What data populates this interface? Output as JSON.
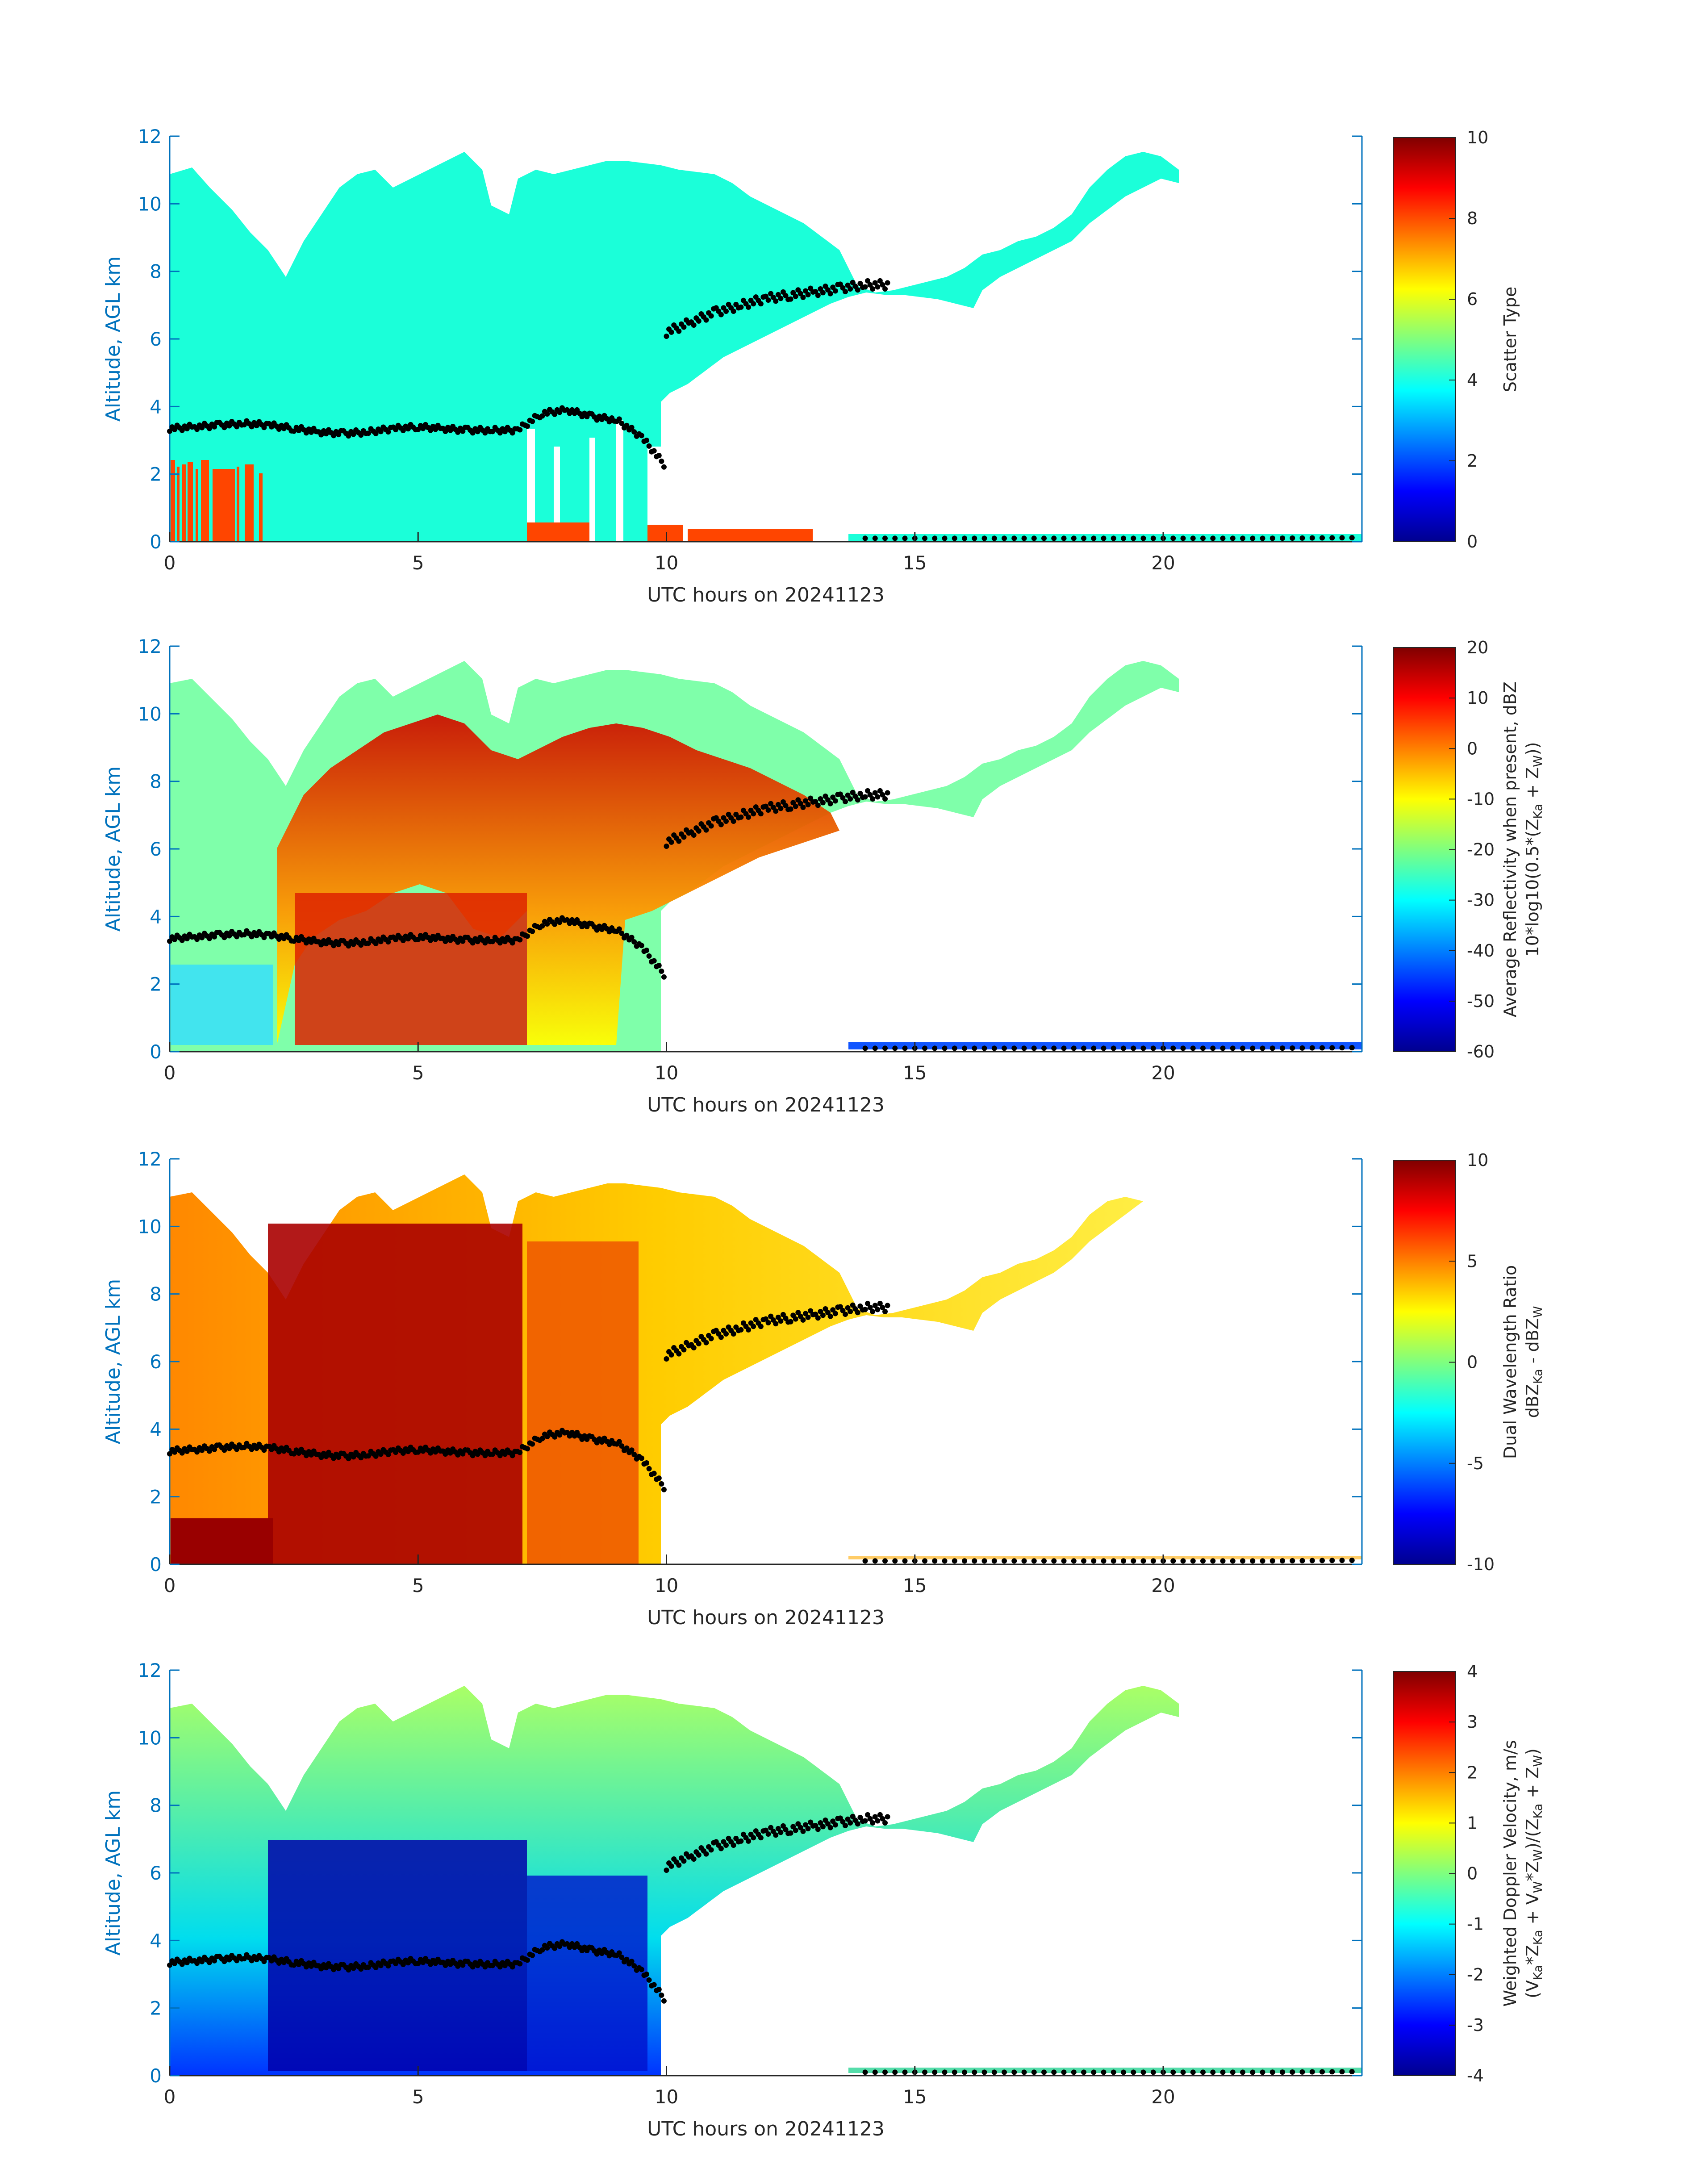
{
  "figure_note_date": "20241123",
  "chart_data": [
    {
      "type": "heatmap",
      "id": "scatter_type",
      "xlabel": "UTC hours on 20241123",
      "ylabel": "Altitude, AGL km",
      "xlim": [
        0,
        24
      ],
      "ylim": [
        0,
        12
      ],
      "xticks": [
        "0",
        "5",
        "10",
        "15",
        "20"
      ],
      "yticks": [
        "0",
        "2",
        "4",
        "6",
        "8",
        "10",
        "12"
      ],
      "colorbar": {
        "label": "Scatter Type",
        "label2": "",
        "clim": [
          0,
          10
        ],
        "ticks": [
          "0",
          "2",
          "4",
          "6",
          "8",
          "10"
        ]
      },
      "colormap": "jet"
    },
    {
      "type": "heatmap",
      "id": "avg_reflectivity",
      "xlabel": "UTC hours on 20241123",
      "ylabel": "Altitude, AGL km",
      "xlim": [
        0,
        24
      ],
      "ylim": [
        0,
        12
      ],
      "xticks": [
        "0",
        "5",
        "10",
        "15",
        "20"
      ],
      "yticks": [
        "0",
        "2",
        "4",
        "6",
        "8",
        "10",
        "12"
      ],
      "colorbar": {
        "label": "Average Reflectivity when present, dBZ",
        "label2": "10*log10(0.5*(Z_Ka + Z_W))",
        "clim": [
          -60,
          20
        ],
        "ticks": [
          "-60",
          "-50",
          "-40",
          "-30",
          "-20",
          "-10",
          "0",
          "10",
          "20"
        ]
      },
      "colormap": "jet"
    },
    {
      "type": "heatmap",
      "id": "dual_wavelength_ratio",
      "xlabel": "UTC hours on 20241123",
      "ylabel": "Altitude, AGL km",
      "xlim": [
        0,
        24
      ],
      "ylim": [
        0,
        12
      ],
      "xticks": [
        "0",
        "5",
        "10",
        "15",
        "20"
      ],
      "yticks": [
        "0",
        "2",
        "4",
        "6",
        "8",
        "10",
        "12"
      ],
      "colorbar": {
        "label": "Dual Wavelength Ratio",
        "label2": "dBZ_Ka - dBZ_W",
        "clim": [
          -10,
          10
        ],
        "ticks": [
          "-10",
          "-5",
          "0",
          "5",
          "10"
        ]
      },
      "colormap": "jet"
    },
    {
      "type": "heatmap",
      "id": "weighted_doppler_velocity",
      "xlabel": "UTC hours on 20241123",
      "ylabel": "Altitude, AGL km",
      "xlim": [
        0,
        24
      ],
      "ylim": [
        0,
        12
      ],
      "xticks": [
        "0",
        "5",
        "10",
        "15",
        "20"
      ],
      "yticks": [
        "0",
        "2",
        "4",
        "6",
        "8",
        "10",
        "12"
      ],
      "colorbar": {
        "label": "Weighted Doppler Velocity, m/s",
        "label2": "(V_Ka*Z_Ka + V_W*Z_W)/(Z_Ka + Z_W)",
        "clim": [
          -4,
          4
        ],
        "ticks": [
          "-4",
          "-3",
          "-2",
          "-1",
          "0",
          "1",
          "2",
          "3",
          "4"
        ]
      },
      "colormap": "jet"
    }
  ],
  "overlay_points": {
    "description_color": "#000000",
    "melting_layer_hours": [
      0,
      0.5,
      1.0,
      1.5,
      2.0,
      2.5,
      3.0,
      3.5,
      4.0,
      4.5,
      5.0,
      5.5,
      6.0,
      6.5,
      7.0,
      7.5,
      8.0,
      8.5,
      9.0,
      9.5,
      10.0
    ],
    "melting_layer_km": [
      3.35,
      3.4,
      3.45,
      3.5,
      3.45,
      3.35,
      3.25,
      3.2,
      3.25,
      3.35,
      3.4,
      3.35,
      3.3,
      3.3,
      3.3,
      3.8,
      3.9,
      3.7,
      3.6,
      3.1,
      2.2
    ],
    "upper_hours": [
      10.0,
      10.5,
      11.0,
      11.5,
      12.0,
      12.5,
      13.0,
      13.5,
      14.0,
      14.5
    ],
    "upper_km": [
      6.2,
      6.5,
      6.8,
      7.0,
      7.2,
      7.3,
      7.4,
      7.5,
      7.6,
      7.6
    ],
    "surface_hours": [
      14.0,
      16.0,
      18.0,
      20.0,
      22.0,
      24.0
    ],
    "surface_km": [
      0.1,
      0.1,
      0.1,
      0.1,
      0.1,
      0.12
    ]
  }
}
